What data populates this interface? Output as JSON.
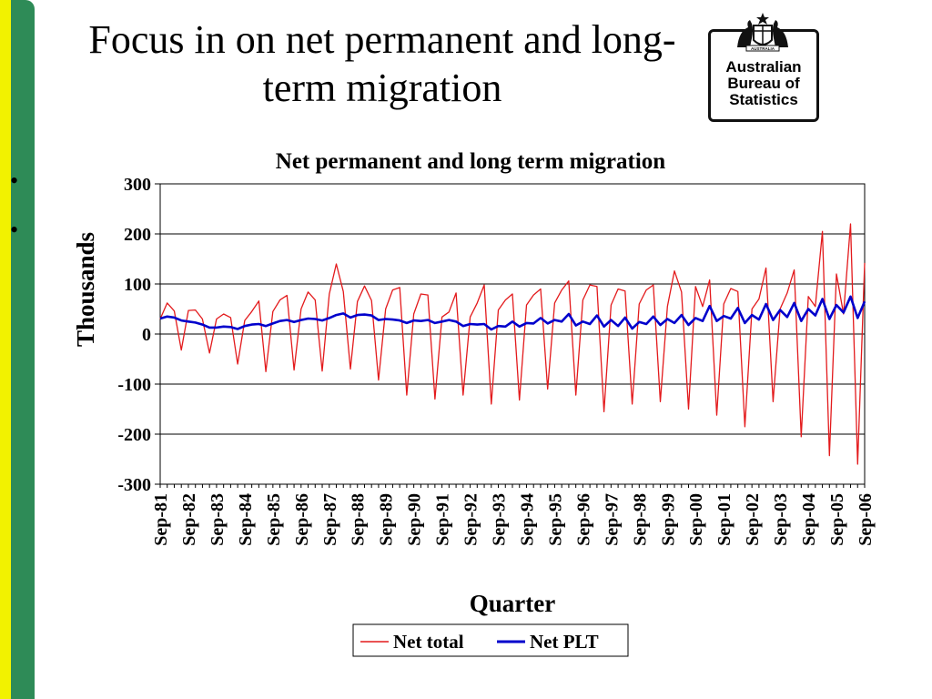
{
  "slide": {
    "title": "Focus in on net permanent and long-term migration",
    "bullets": [
      "•",
      "•"
    ]
  },
  "logo": {
    "text": "Australian\nBureau of\nStatistics",
    "crest_text": "AUSTRALIA",
    "icon": "coat-of-arms-icon"
  },
  "colors": {
    "sidebar_yellow": "#f2f200",
    "sidebar_green": "#2e8b57",
    "net_total": "#e31a1c",
    "net_plt": "#0000cc"
  },
  "chart_data": {
    "type": "line",
    "title": "Net permanent and long term migration",
    "xlabel": "Quarter",
    "ylabel": "Thousands",
    "ylim": [
      -300,
      300
    ],
    "yticks": [
      300,
      200,
      100,
      0,
      -100,
      -200,
      -300
    ],
    "ytick_labels": [
      "300",
      "200",
      "100",
      "0",
      "-100",
      "-200",
      "-300"
    ],
    "grid": true,
    "legend_position": "bottom-center",
    "x_tick_labels": [
      "Sep-81",
      "Sep-82",
      "Sep-83",
      "Sep-84",
      "Sep-85",
      "Sep-86",
      "Sep-87",
      "Sep-88",
      "Sep-89",
      "Sep-90",
      "Sep-91",
      "Sep-92",
      "Sep-93",
      "Sep-94",
      "Sep-95",
      "Sep-96",
      "Sep-97",
      "Sep-98",
      "Sep-99",
      "Sep-00",
      "Sep-01",
      "Sep-02",
      "Sep-03",
      "Sep-04",
      "Sep-05",
      "Sep-06"
    ],
    "series": [
      {
        "name": "Net total",
        "values": [
          30,
          62,
          46,
          -32,
          47,
          48,
          30,
          -38,
          30,
          40,
          33,
          -60,
          27,
          45,
          66,
          -75,
          45,
          68,
          77,
          -72,
          50,
          84,
          68,
          -74,
          80,
          140,
          85,
          -70,
          65,
          96,
          67,
          -92,
          50,
          88,
          93,
          -122,
          40,
          80,
          78,
          -130,
          34,
          44,
          82,
          -122,
          34,
          62,
          98,
          -140,
          48,
          68,
          80,
          -132,
          58,
          78,
          90,
          -110,
          62,
          88,
          106,
          -122,
          68,
          98,
          95,
          -155,
          58,
          90,
          86,
          -140,
          60,
          88,
          98,
          -135,
          55,
          126,
          84,
          -150,
          95,
          55,
          108,
          -162,
          60,
          91,
          85,
          -185,
          50,
          70,
          132,
          -135,
          50,
          82,
          128,
          -205,
          75,
          55,
          205,
          -243,
          120,
          40,
          220,
          -260,
          142
        ]
      },
      {
        "name": "Net PLT",
        "values": [
          31,
          35,
          33,
          27,
          25,
          23,
          19,
          13,
          13,
          15,
          14,
          10,
          16,
          19,
          20,
          16,
          21,
          26,
          28,
          24,
          28,
          31,
          30,
          27,
          32,
          38,
          41,
          33,
          38,
          39,
          37,
          28,
          30,
          29,
          27,
          22,
          27,
          26,
          28,
          22,
          25,
          28,
          25,
          16,
          20,
          19,
          20,
          9,
          16,
          15,
          25,
          15,
          22,
          21,
          32,
          21,
          28,
          25,
          40,
          17,
          25,
          20,
          37,
          15,
          28,
          16,
          33,
          11,
          24,
          20,
          35,
          18,
          30,
          22,
          38,
          18,
          32,
          26,
          56,
          26,
          36,
          31,
          52,
          22,
          38,
          29,
          60,
          28,
          48,
          34,
          62,
          26,
          50,
          37,
          70,
          30,
          58,
          43,
          75,
          32,
          65
        ]
      }
    ]
  }
}
